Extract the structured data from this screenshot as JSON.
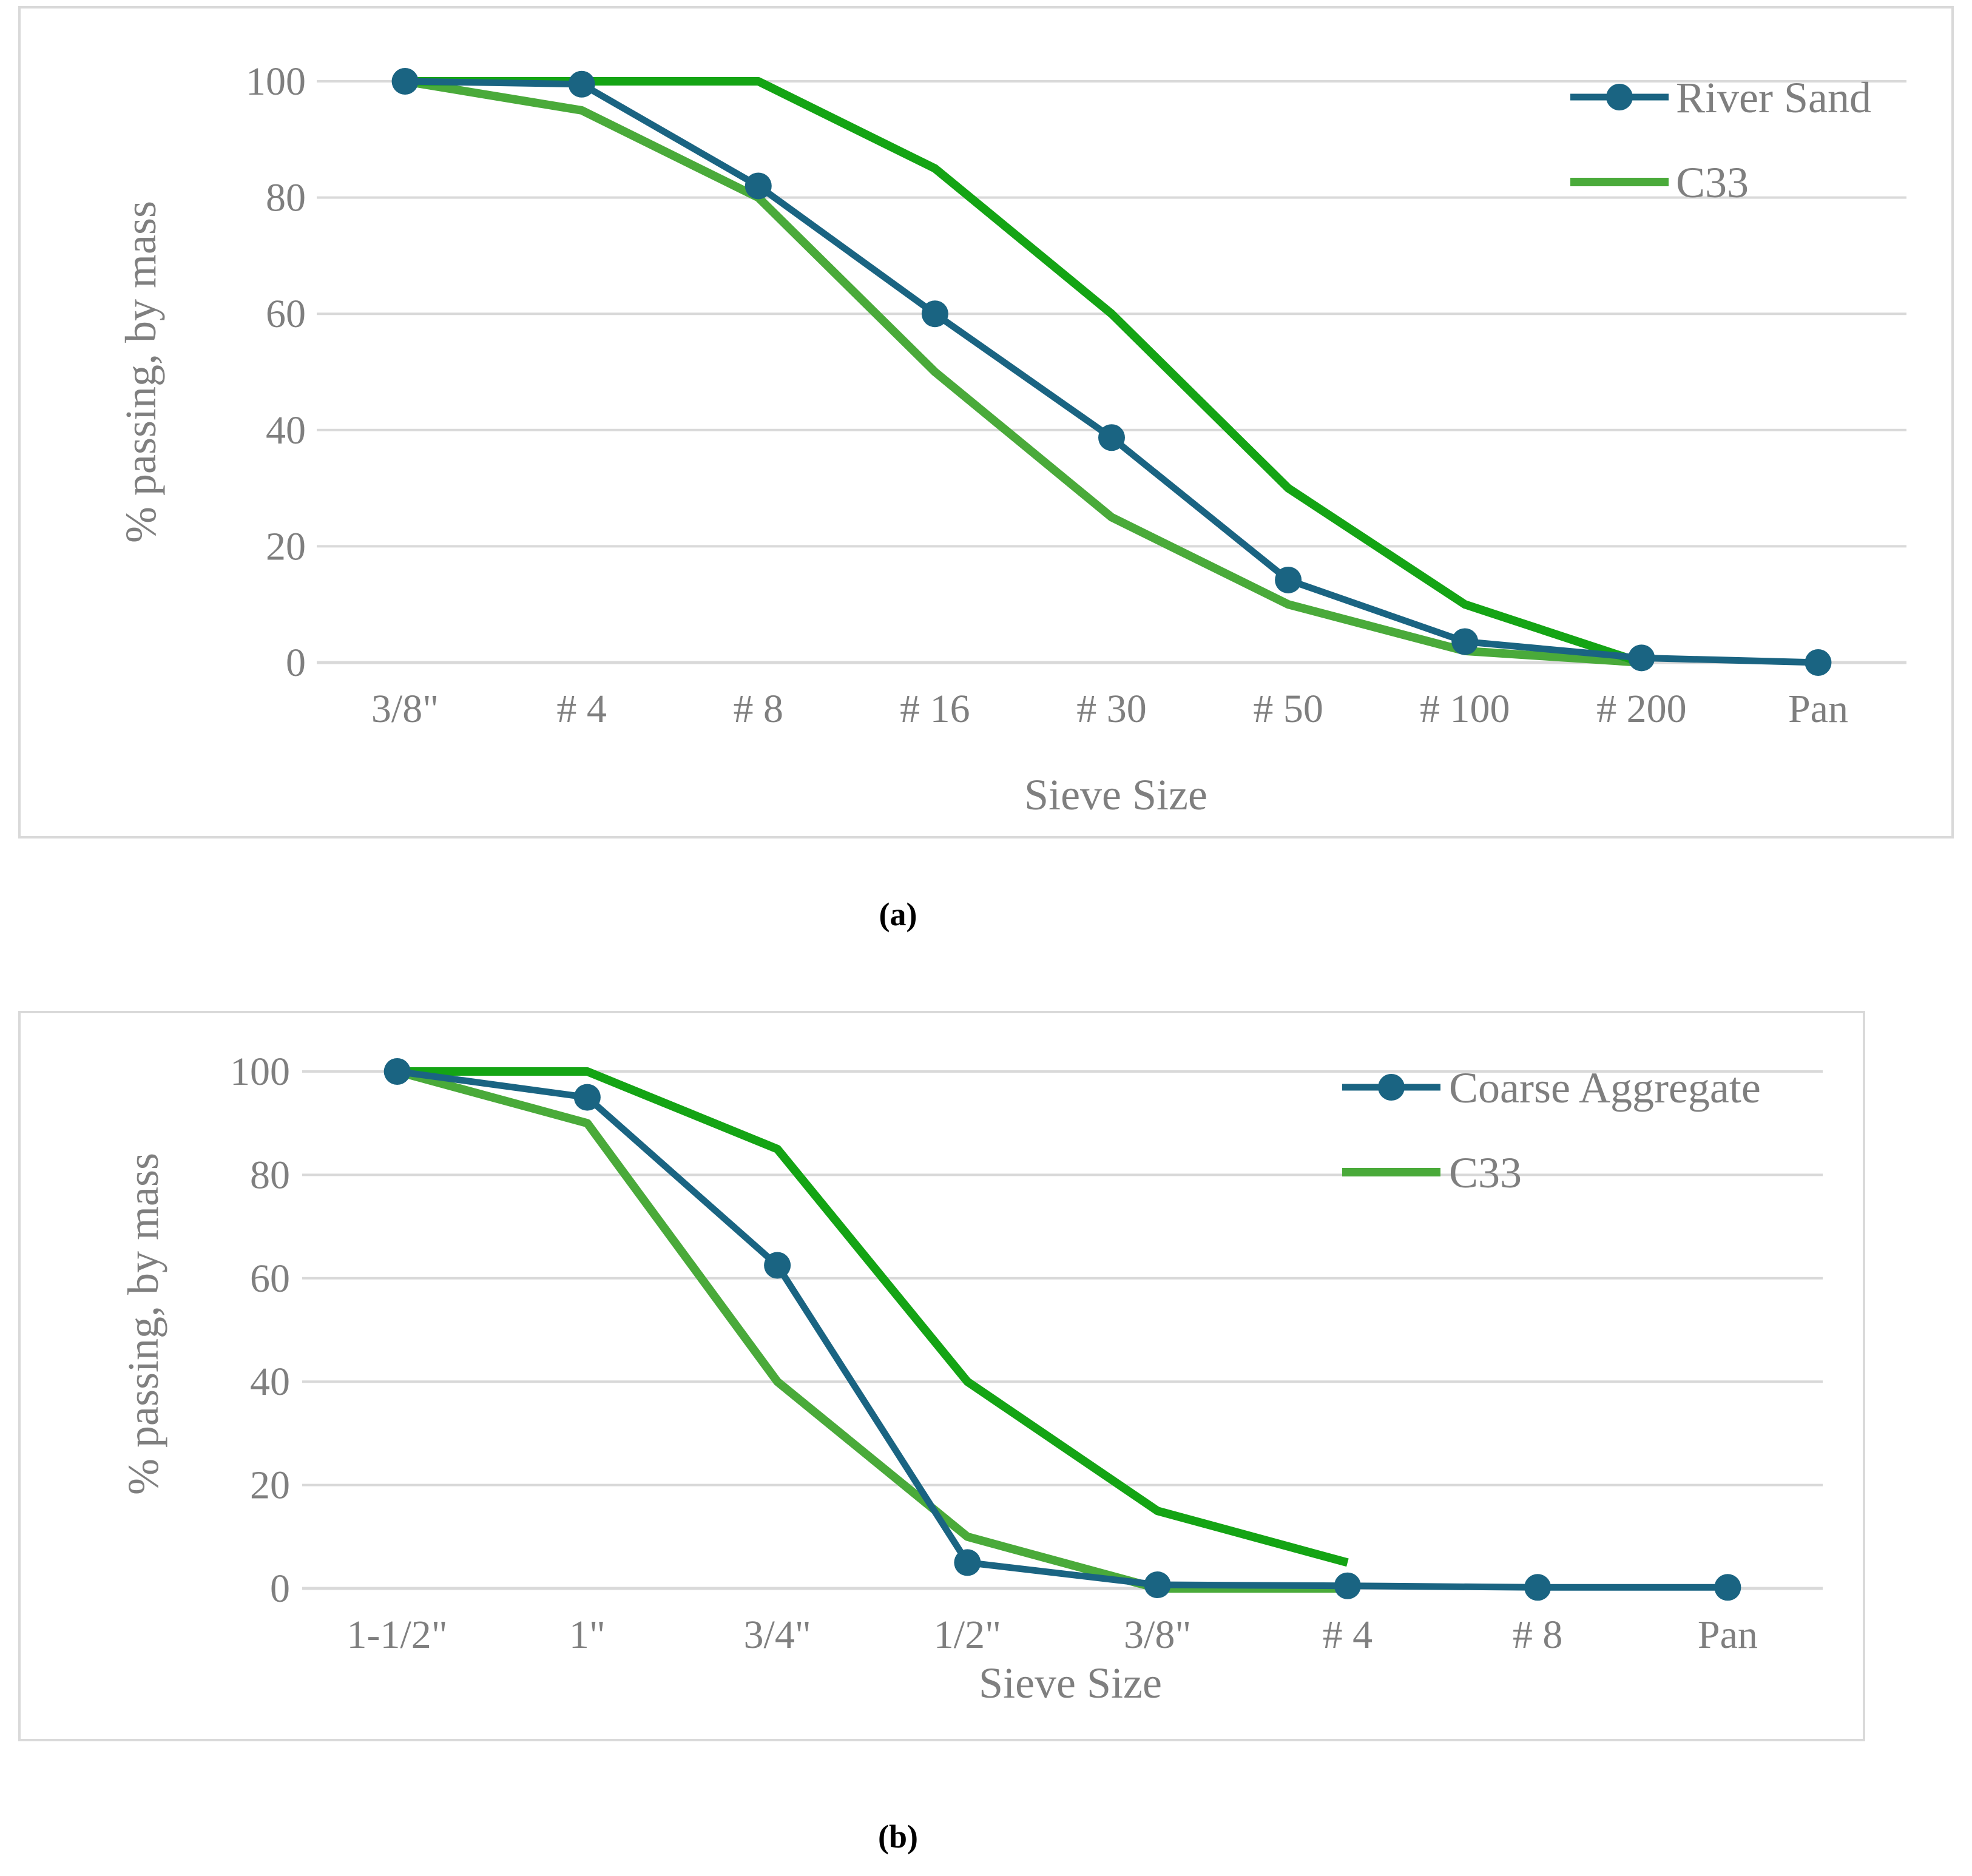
{
  "colors": {
    "river_sand": "#1a6482",
    "c33_lower": "#4aaa3a",
    "c33_upper": "#14a414",
    "grid": "#d9d9d9",
    "text": "#7f7f7f"
  },
  "captions": {
    "a": "(a)",
    "b": "(b)"
  },
  "chart_data": [
    {
      "type": "line",
      "title": "",
      "xlabel": "Sieve Size",
      "ylabel": "% passing, by mass",
      "ylim": [
        0,
        100
      ],
      "yticks": [
        0,
        20,
        40,
        60,
        80,
        100
      ],
      "categories": [
        "3/8\"",
        "# 4",
        "# 8",
        "# 16",
        "# 30",
        "# 50",
        "# 100",
        "# 200",
        "Pan"
      ],
      "legend": {
        "position": "top-right",
        "entries": [
          "River Sand",
          "C33"
        ]
      },
      "series": [
        {
          "name": "River Sand",
          "role": "river_sand",
          "markers": true,
          "values": [
            100,
            99.5,
            82,
            60,
            38.7,
            14.2,
            3.6,
            0.8,
            0
          ]
        },
        {
          "name": "C33",
          "role": "c33_lower",
          "markers": false,
          "values": [
            100,
            95,
            80,
            50,
            25,
            10,
            2,
            0,
            null
          ]
        },
        {
          "name": "C33",
          "role": "c33_upper",
          "markers": false,
          "values": [
            100,
            100,
            100,
            85,
            60,
            30,
            10,
            0,
            null
          ]
        }
      ]
    },
    {
      "type": "line",
      "title": "",
      "xlabel": "Sieve Size",
      "ylabel": "% passing, by mass",
      "ylim": [
        0,
        100
      ],
      "yticks": [
        0,
        20,
        40,
        60,
        80,
        100
      ],
      "categories": [
        "1-1/2\"",
        "1\"",
        "3/4\"",
        "1/2\"",
        "3/8\"",
        "# 4",
        "# 8",
        "Pan"
      ],
      "legend": {
        "position": "top-right",
        "entries": [
          "Coarse Aggregate",
          "C33"
        ]
      },
      "series": [
        {
          "name": "Coarse Aggregate",
          "role": "river_sand",
          "markers": true,
          "values": [
            100,
            95,
            62.5,
            5,
            0.7,
            0.5,
            0.2,
            0.2
          ]
        },
        {
          "name": "C33",
          "role": "c33_lower",
          "markers": false,
          "values": [
            100,
            90,
            40,
            10,
            0,
            0,
            null,
            null
          ]
        },
        {
          "name": "C33",
          "role": "c33_upper",
          "markers": false,
          "values": [
            100,
            100,
            85,
            40,
            15,
            5,
            null,
            null
          ]
        }
      ]
    }
  ]
}
